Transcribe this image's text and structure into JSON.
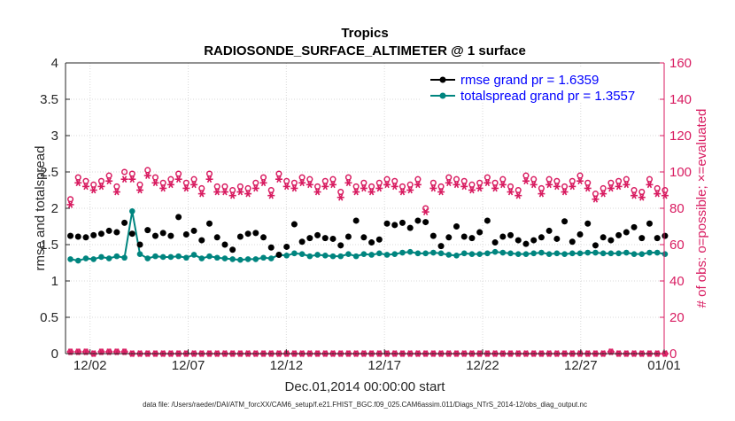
{
  "colors": {
    "rmse": "#000000",
    "spread": "#00857f",
    "obs": "#d81b60",
    "legend_text": "#0000ff",
    "grid": "#d9d9d9",
    "axis": "#262626"
  },
  "chart_data": {
    "type": "line",
    "title": "Tropics",
    "subtitle": "RADIOSONDE_SURFACE_ALTIMETER @ 1 surface",
    "xlabel": "Dec.01,2014 00:00:00 start",
    "ylabel": "rmse and totalspread",
    "ylabel_right": "# of obs: o=possible; ×=evaluated",
    "footnote": "data file: /Users/raeder/DAI/ATM_forcXX/CAM6_setup/f.e21.FHIST_BGC.f09_025.CAM6assim.011/Diags_NTrS_2014-12/obs_diag_output.nc",
    "x_range_days": [
      0.75,
      31.25
    ],
    "ylim": [
      0,
      4
    ],
    "ylim_right": [
      0,
      160
    ],
    "yticks": [
      "0",
      "0.5",
      "1",
      "1.5",
      "2",
      "2.5",
      "3",
      "3.5",
      "4"
    ],
    "yticks_right": [
      "0",
      "20",
      "40",
      "60",
      "80",
      "100",
      "120",
      "140",
      "160"
    ],
    "xticks": [
      {
        "day": 2,
        "label": "12/02"
      },
      {
        "day": 7,
        "label": "12/07"
      },
      {
        "day": 12,
        "label": "12/12"
      },
      {
        "day": 17,
        "label": "12/17"
      },
      {
        "day": 22,
        "label": "12/22"
      },
      {
        "day": 27,
        "label": "12/27"
      },
      {
        "day": 32,
        "label": "01/01"
      }
    ],
    "grid": true,
    "legend_location": "top-right",
    "series": [
      {
        "name": "rmse grand pr = 1.6359",
        "axis": "left",
        "marker": "filled-circle",
        "values": [
          1.62,
          1.61,
          1.6,
          1.63,
          1.65,
          1.69,
          1.67,
          1.8,
          1.65,
          1.5,
          1.7,
          1.62,
          1.66,
          1.62,
          1.88,
          1.64,
          1.69,
          1.56,
          1.79,
          1.6,
          1.5,
          1.43,
          1.61,
          1.65,
          1.66,
          1.6,
          1.46,
          1.36,
          1.47,
          1.78,
          1.54,
          1.59,
          1.63,
          1.59,
          1.58,
          1.49,
          1.61,
          1.83,
          1.6,
          1.53,
          1.57,
          1.79,
          1.77,
          1.8,
          1.73,
          1.83,
          1.81,
          1.62,
          1.48,
          1.6,
          1.75,
          1.61,
          1.59,
          1.67,
          1.83,
          1.53,
          1.61,
          1.63,
          1.56,
          1.51,
          1.56,
          1.6,
          1.69,
          1.58,
          1.82,
          1.54,
          1.64,
          1.79,
          1.49,
          1.6,
          1.56,
          1.63,
          1.67,
          1.74,
          1.59,
          1.79,
          1.59,
          1.62
        ]
      },
      {
        "name": "totalspread grand pr = 1.3557",
        "axis": "left",
        "marker": "filled-circle",
        "values": [
          1.3,
          1.28,
          1.31,
          1.3,
          1.33,
          1.31,
          1.34,
          1.32,
          1.96,
          1.37,
          1.31,
          1.34,
          1.33,
          1.33,
          1.34,
          1.32,
          1.36,
          1.31,
          1.34,
          1.32,
          1.31,
          1.3,
          1.29,
          1.3,
          1.3,
          1.32,
          1.31,
          1.36,
          1.35,
          1.38,
          1.37,
          1.34,
          1.36,
          1.35,
          1.34,
          1.34,
          1.37,
          1.34,
          1.37,
          1.36,
          1.38,
          1.36,
          1.37,
          1.39,
          1.4,
          1.38,
          1.38,
          1.39,
          1.38,
          1.36,
          1.35,
          1.38,
          1.37,
          1.37,
          1.38,
          1.4,
          1.39,
          1.38,
          1.37,
          1.37,
          1.38,
          1.39,
          1.37,
          1.38,
          1.37,
          1.38,
          1.38,
          1.39,
          1.39,
          1.38,
          1.38,
          1.38,
          1.39,
          1.37,
          1.37,
          1.39,
          1.39,
          1.37
        ]
      },
      {
        "name": "possible obs",
        "axis": "right",
        "marker": "open-circle",
        "values": [
          85,
          97,
          95,
          93,
          95,
          98,
          92,
          100,
          99,
          93,
          101,
          97,
          94,
          96,
          99,
          94,
          96,
          91,
          99,
          92,
          92,
          90,
          92,
          91,
          94,
          97,
          90,
          99,
          95,
          94,
          97,
          96,
          92,
          95,
          96,
          89,
          97,
          92,
          94,
          92,
          94,
          96,
          95,
          92,
          93,
          96,
          80,
          94,
          92,
          97,
          96,
          95,
          93,
          94,
          97,
          94,
          96,
          92,
          90,
          98,
          96,
          91,
          96,
          95,
          92,
          95,
          98,
          94,
          88,
          91,
          94,
          95,
          96,
          90,
          89,
          96,
          91,
          90
        ]
      },
      {
        "name": "evaluated obs",
        "axis": "right",
        "marker": "asterisk",
        "values": [
          82,
          94,
          92,
          90,
          92,
          95,
          89,
          96,
          96,
          90,
          98,
          94,
          91,
          93,
          96,
          91,
          93,
          88,
          96,
          89,
          89,
          87,
          89,
          88,
          91,
          94,
          87,
          96,
          92,
          91,
          94,
          93,
          89,
          92,
          93,
          86,
          94,
          89,
          91,
          89,
          91,
          93,
          92,
          89,
          90,
          93,
          78,
          91,
          89,
          94,
          93,
          92,
          90,
          91,
          94,
          91,
          93,
          89,
          87,
          95,
          93,
          88,
          93,
          92,
          89,
          92,
          95,
          91,
          85,
          88,
          91,
          92,
          93,
          87,
          86,
          93,
          88,
          87
        ]
      },
      {
        "name": "possible obs (rmse slot)",
        "axis": "right",
        "marker": "open-circle",
        "values": [
          1,
          1,
          1,
          0,
          1,
          1,
          1,
          1,
          0,
          0,
          0,
          0,
          0,
          0,
          0,
          0,
          0,
          0,
          0,
          0,
          0,
          0,
          0,
          0,
          0,
          0,
          0,
          0,
          0,
          0,
          0,
          0,
          0,
          0,
          0,
          0,
          0,
          0,
          0,
          0,
          0,
          0,
          0,
          0,
          0,
          0,
          0,
          0,
          0,
          0,
          0,
          0,
          0,
          0,
          0,
          0,
          0,
          0,
          0,
          0,
          0,
          0,
          0,
          0,
          0,
          0,
          0,
          0,
          0,
          0,
          1,
          0,
          0,
          0,
          0,
          0,
          0,
          0
        ]
      },
      {
        "name": "evaluated obs (rmse slot)",
        "axis": "right",
        "marker": "asterisk",
        "values": [
          1,
          1,
          1,
          0,
          1,
          1,
          1,
          1,
          0,
          0,
          0,
          0,
          0,
          0,
          0,
          0,
          0,
          0,
          0,
          0,
          0,
          0,
          0,
          0,
          0,
          0,
          0,
          0,
          0,
          0,
          0,
          0,
          0,
          0,
          0,
          0,
          0,
          0,
          0,
          0,
          0,
          0,
          0,
          0,
          0,
          0,
          0,
          0,
          0,
          0,
          0,
          0,
          0,
          0,
          0,
          0,
          0,
          0,
          0,
          0,
          0,
          0,
          0,
          0,
          0,
          0,
          0,
          0,
          0,
          0,
          1,
          0,
          0,
          0,
          0,
          0,
          0,
          0
        ]
      }
    ],
    "x_start_day": 1.0,
    "x_step_days": 0.3934
  }
}
